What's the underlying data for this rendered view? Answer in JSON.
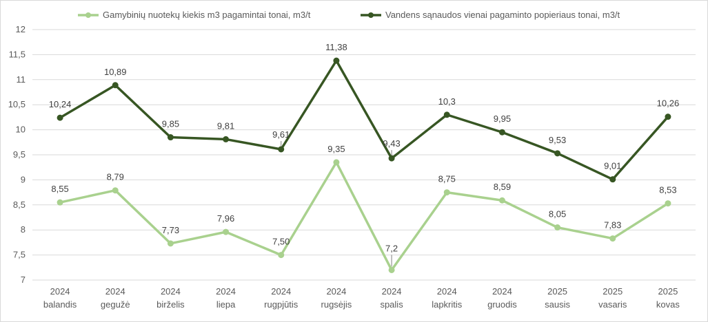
{
  "chart_data": {
    "type": "line",
    "categories": [
      [
        "2024",
        "balandis"
      ],
      [
        "2024",
        "gegužė"
      ],
      [
        "2024",
        "birželis"
      ],
      [
        "2024",
        "liepa"
      ],
      [
        "2024",
        "rugpjūtis"
      ],
      [
        "2024",
        "rugsėjis"
      ],
      [
        "2024",
        "spalis"
      ],
      [
        "2024",
        "lapkritis"
      ],
      [
        "2024",
        "gruodis"
      ],
      [
        "2025",
        "sausis"
      ],
      [
        "2025",
        "vasaris"
      ],
      [
        "2025",
        "kovas"
      ]
    ],
    "series": [
      {
        "name": "Gamybinių nuotekų kiekis m3 pagamintai tonai, m3/t",
        "color": "#a9d18e",
        "values": [
          8.55,
          8.79,
          7.73,
          7.96,
          7.5,
          9.35,
          7.2,
          8.75,
          8.59,
          8.05,
          7.83,
          8.53
        ],
        "labels": [
          "8,55",
          "8,79",
          "7,73",
          "7,96",
          "7,50",
          "9,35",
          "7,2",
          "8,75",
          "8,59",
          "8,05",
          "7,83",
          "8,53"
        ]
      },
      {
        "name": "Vandens sąnaudos vienai pagaminto popieriaus tonai, m3/t",
        "color": "#375623",
        "values": [
          10.24,
          10.89,
          9.85,
          9.81,
          9.61,
          11.38,
          9.43,
          10.3,
          9.95,
          9.53,
          9.01,
          10.26
        ],
        "labels": [
          "10,24",
          "10,89",
          "9,85",
          "9,81",
          "9,61",
          "11,38",
          "9,43",
          "10,3",
          "9,95",
          "9,53",
          "9,01",
          "10,26"
        ]
      }
    ],
    "ylim": [
      7,
      12
    ],
    "yticks": [
      7,
      7.5,
      8,
      8.5,
      9,
      9.5,
      10,
      10.5,
      11,
      11.5,
      12
    ],
    "ytick_labels": [
      "7",
      "7,5",
      "8",
      "8,5",
      "9",
      "9,5",
      "10",
      "10,5",
      "11",
      "11,5",
      "12"
    ],
    "grid": true,
    "legend": "top"
  }
}
